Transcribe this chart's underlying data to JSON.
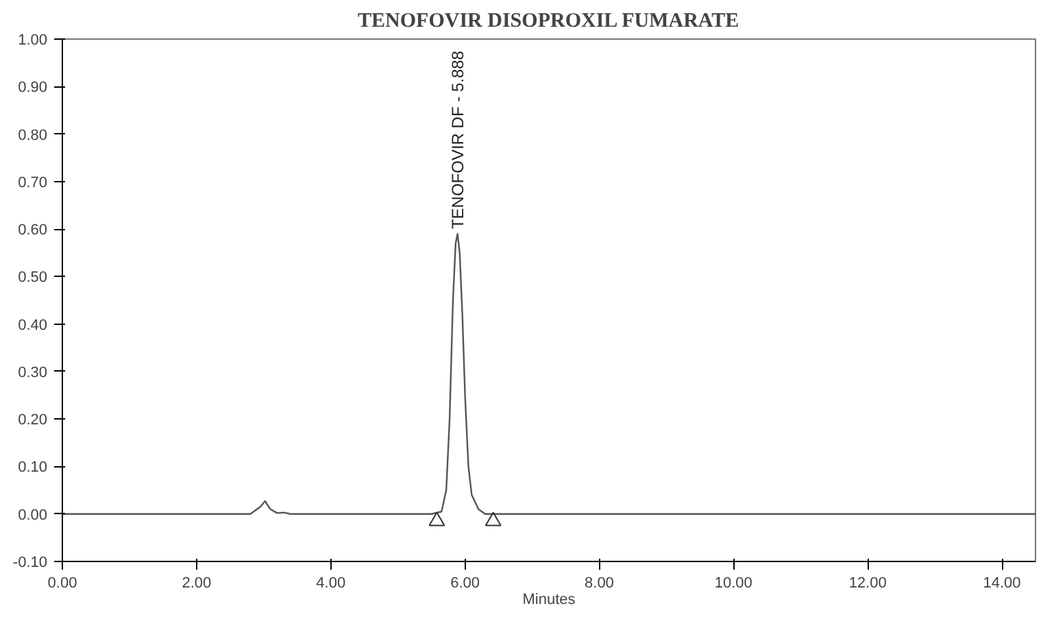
{
  "chart_data": {
    "type": "line",
    "title": "TENOFOVIR DISOPROXIL FUMARATE",
    "xlabel": "Minutes",
    "xlim": [
      0,
      14.5
    ],
    "ylim": [
      -0.1,
      1.0
    ],
    "xticks": [
      {
        "value": 0,
        "label": "0.00"
      },
      {
        "value": 2,
        "label": "2.00"
      },
      {
        "value": 4,
        "label": "4.00"
      },
      {
        "value": 6,
        "label": "6.00"
      },
      {
        "value": 8,
        "label": "8.00"
      },
      {
        "value": 10,
        "label": "10.00"
      },
      {
        "value": 12,
        "label": "12.00"
      },
      {
        "value": 14,
        "label": "14.00"
      }
    ],
    "yticks": [
      {
        "value": -0.1,
        "label": "-0.10"
      },
      {
        "value": 0,
        "label": "0.00"
      },
      {
        "value": 0.1,
        "label": "0.10"
      },
      {
        "value": 0.2,
        "label": "0.20"
      },
      {
        "value": 0.3,
        "label": "0.30"
      },
      {
        "value": 0.4,
        "label": "0.40"
      },
      {
        "value": 0.5,
        "label": "0.50"
      },
      {
        "value": 0.6,
        "label": "0.60"
      },
      {
        "value": 0.7,
        "label": "0.70"
      },
      {
        "value": 0.8,
        "label": "0.80"
      },
      {
        "value": 0.9,
        "label": "0.90"
      },
      {
        "value": 1.0,
        "label": "1.00"
      }
    ],
    "grid": false,
    "annotations": [
      {
        "text": "TENOFOVIR DF - 5.888",
        "x": 5.888,
        "y": 0.6
      }
    ],
    "series": [
      {
        "color": "#555555",
        "marker": "none",
        "x": [
          0,
          2.8,
          2.95,
          3.02,
          3.1,
          3.2,
          3.3,
          3.4,
          5.5,
          5.65,
          5.72,
          5.77,
          5.82,
          5.86,
          5.888,
          5.92,
          5.96,
          6.0,
          6.05,
          6.1,
          6.2,
          6.3,
          14.5
        ],
        "values": [
          0,
          0,
          0.015,
          0.027,
          0.01,
          0.002,
          0.003,
          0,
          0,
          0.005,
          0.05,
          0.2,
          0.45,
          0.57,
          0.59,
          0.55,
          0.42,
          0.25,
          0.1,
          0.04,
          0.01,
          0,
          0
        ]
      },
      {
        "type": "scatter",
        "color": "#333333",
        "marker": "triangle",
        "x": [
          5.58,
          6.42
        ],
        "values": [
          -0.015,
          -0.015
        ]
      }
    ]
  }
}
